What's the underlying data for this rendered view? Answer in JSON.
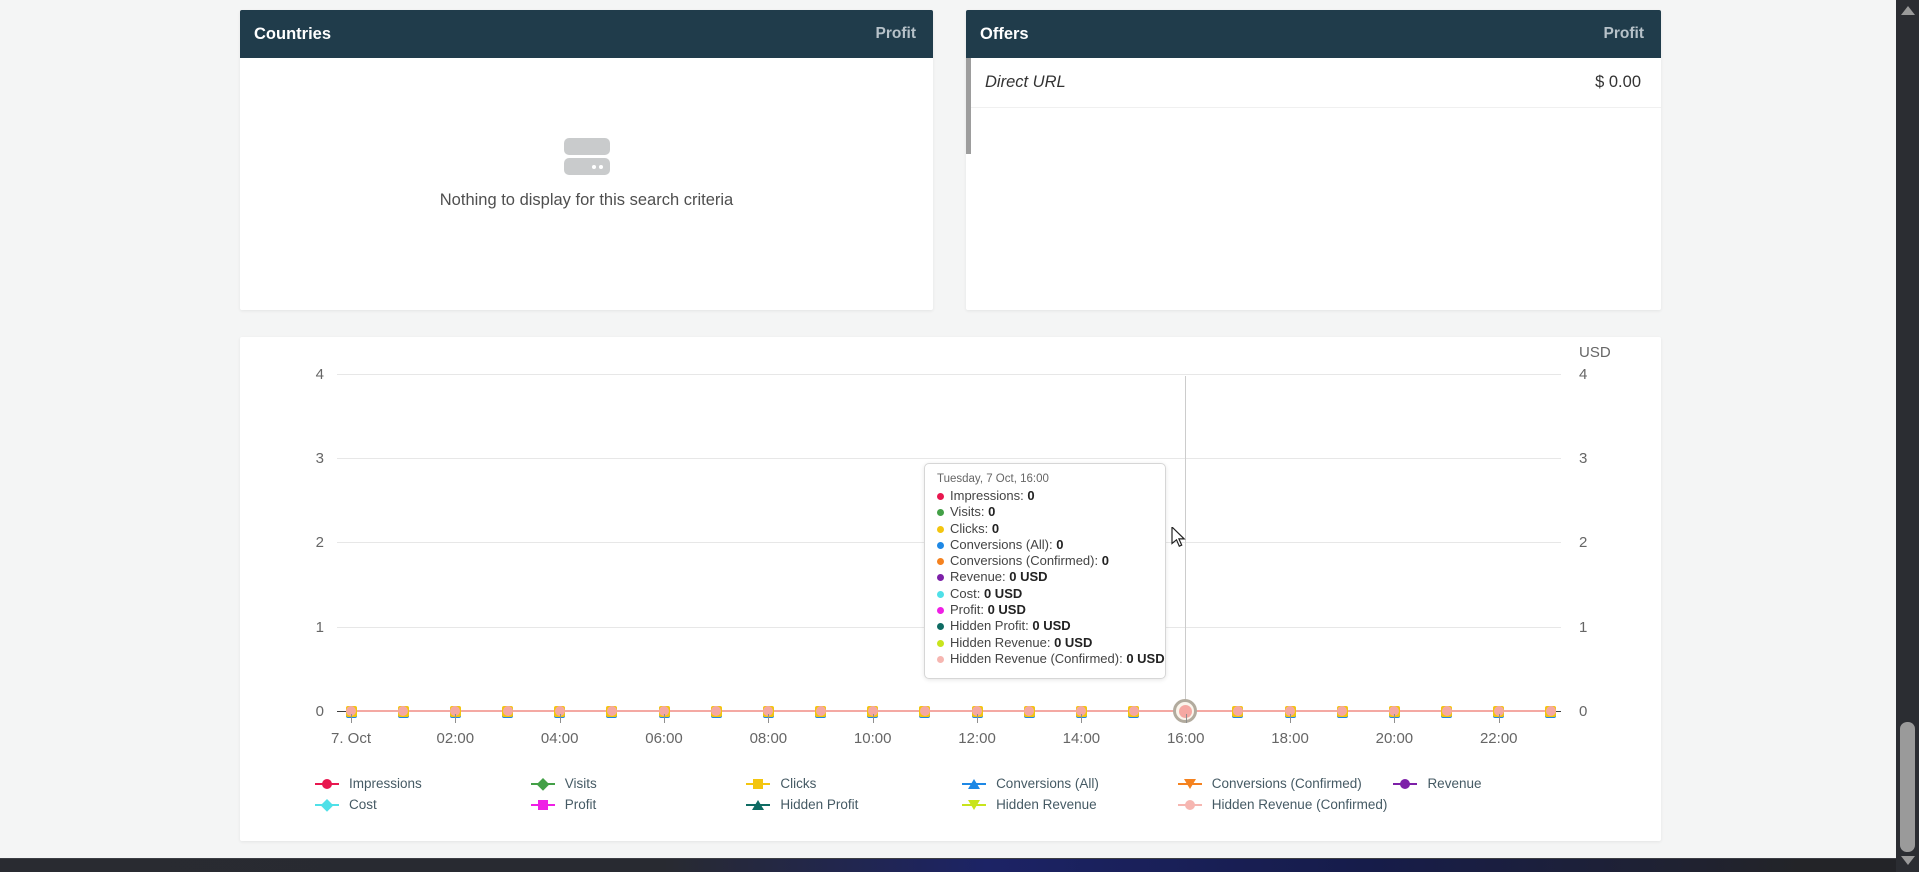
{
  "colors": {
    "page_bg": "#f4f5f5",
    "panel_header_bg": "#203c4b",
    "bottom_bar_navy": "#1c2365",
    "series_line": "#f4a9a3"
  },
  "panels": {
    "countries": {
      "title": "Countries",
      "column_header": "Profit",
      "empty_text": "Nothing to display for this search criteria"
    },
    "offers": {
      "title": "Offers",
      "column_header": "Profit",
      "rows": [
        {
          "name": "Direct URL",
          "profit": "$ 0.00"
        }
      ]
    }
  },
  "chart": {
    "currency_label": "USD",
    "y_ticks": [
      "4",
      "3",
      "2",
      "1",
      "0"
    ],
    "x_labels": [
      "7. Oct",
      "02:00",
      "04:00",
      "06:00",
      "08:00",
      "10:00",
      "12:00",
      "14:00",
      "16:00",
      "18:00",
      "20:00",
      "22:00"
    ],
    "num_points": 24,
    "hover_index": 16,
    "tooltip": {
      "title": "Tuesday, 7 Oct, 16:00",
      "rows": [
        {
          "label": "Impressions",
          "value": "0",
          "color": "#e8174f"
        },
        {
          "label": "Visits",
          "value": "0",
          "color": "#43a047"
        },
        {
          "label": "Clicks",
          "value": "0",
          "color": "#f3c50f"
        },
        {
          "label": "Conversions (All)",
          "value": "0",
          "color": "#1e88e5"
        },
        {
          "label": "Conversions (Confirmed)",
          "value": "0",
          "color": "#f5821f"
        },
        {
          "label": "Revenue",
          "value": "0 USD",
          "color": "#7d20a8"
        },
        {
          "label": "Cost",
          "value": "0 USD",
          "color": "#4fe0e8"
        },
        {
          "label": "Profit",
          "value": "0 USD",
          "color": "#ef1fe5"
        },
        {
          "label": "Hidden Profit",
          "value": "0 USD",
          "color": "#0e6b63"
        },
        {
          "label": "Hidden Revenue",
          "value": "0 USD",
          "color": "#c8e41c"
        },
        {
          "label": "Hidden Revenue (Confirmed)",
          "value": "0 USD",
          "color": "#f6b6b1"
        }
      ]
    },
    "legend": {
      "row1": [
        {
          "label": "Impressions",
          "color": "#e8174f",
          "shape": "circle"
        },
        {
          "label": "Visits",
          "color": "#43a047",
          "shape": "diamond"
        },
        {
          "label": "Clicks",
          "color": "#f3c50f",
          "shape": "square"
        },
        {
          "label": "Conversions (All)",
          "color": "#1e88e5",
          "shape": "triangle-up"
        },
        {
          "label": "Conversions (Confirmed)",
          "color": "#f5821f",
          "shape": "triangle-down"
        },
        {
          "label": "Revenue",
          "color": "#7d20a8",
          "shape": "circle"
        }
      ],
      "row2": [
        {
          "label": "Cost",
          "color": "#4fe0e8",
          "shape": "diamond"
        },
        {
          "label": "Profit",
          "color": "#ef1fe5",
          "shape": "square"
        },
        {
          "label": "Hidden Profit",
          "color": "#0e6b63",
          "shape": "triangle-up"
        },
        {
          "label": "Hidden Revenue",
          "color": "#c8e41c",
          "shape": "triangle-down"
        },
        {
          "label": "Hidden Revenue (Confirmed)",
          "color": "#f6b6b1",
          "shape": "circle"
        }
      ]
    }
  },
  "chart_data": {
    "type": "line",
    "title": "",
    "xlabel": "",
    "ylabel": "USD",
    "ylim": [
      0,
      4
    ],
    "x_date": "Tuesday, 7 Oct",
    "x": [
      "00:00",
      "01:00",
      "02:00",
      "03:00",
      "04:00",
      "05:00",
      "06:00",
      "07:00",
      "08:00",
      "09:00",
      "10:00",
      "11:00",
      "12:00",
      "13:00",
      "14:00",
      "15:00",
      "16:00",
      "17:00",
      "18:00",
      "19:00",
      "20:00",
      "21:00",
      "22:00",
      "23:00"
    ],
    "series": [
      {
        "name": "Impressions",
        "values": [
          0,
          0,
          0,
          0,
          0,
          0,
          0,
          0,
          0,
          0,
          0,
          0,
          0,
          0,
          0,
          0,
          0,
          0,
          0,
          0,
          0,
          0,
          0,
          0
        ]
      },
      {
        "name": "Visits",
        "values": [
          0,
          0,
          0,
          0,
          0,
          0,
          0,
          0,
          0,
          0,
          0,
          0,
          0,
          0,
          0,
          0,
          0,
          0,
          0,
          0,
          0,
          0,
          0,
          0
        ]
      },
      {
        "name": "Clicks",
        "values": [
          0,
          0,
          0,
          0,
          0,
          0,
          0,
          0,
          0,
          0,
          0,
          0,
          0,
          0,
          0,
          0,
          0,
          0,
          0,
          0,
          0,
          0,
          0,
          0
        ]
      },
      {
        "name": "Conversions (All)",
        "values": [
          0,
          0,
          0,
          0,
          0,
          0,
          0,
          0,
          0,
          0,
          0,
          0,
          0,
          0,
          0,
          0,
          0,
          0,
          0,
          0,
          0,
          0,
          0,
          0
        ]
      },
      {
        "name": "Conversions (Confirmed)",
        "values": [
          0,
          0,
          0,
          0,
          0,
          0,
          0,
          0,
          0,
          0,
          0,
          0,
          0,
          0,
          0,
          0,
          0,
          0,
          0,
          0,
          0,
          0,
          0,
          0
        ]
      },
      {
        "name": "Revenue",
        "values": [
          0,
          0,
          0,
          0,
          0,
          0,
          0,
          0,
          0,
          0,
          0,
          0,
          0,
          0,
          0,
          0,
          0,
          0,
          0,
          0,
          0,
          0,
          0,
          0
        ]
      },
      {
        "name": "Cost",
        "values": [
          0,
          0,
          0,
          0,
          0,
          0,
          0,
          0,
          0,
          0,
          0,
          0,
          0,
          0,
          0,
          0,
          0,
          0,
          0,
          0,
          0,
          0,
          0,
          0
        ]
      },
      {
        "name": "Profit",
        "values": [
          0,
          0,
          0,
          0,
          0,
          0,
          0,
          0,
          0,
          0,
          0,
          0,
          0,
          0,
          0,
          0,
          0,
          0,
          0,
          0,
          0,
          0,
          0,
          0
        ]
      },
      {
        "name": "Hidden Profit",
        "values": [
          0,
          0,
          0,
          0,
          0,
          0,
          0,
          0,
          0,
          0,
          0,
          0,
          0,
          0,
          0,
          0,
          0,
          0,
          0,
          0,
          0,
          0,
          0,
          0
        ]
      },
      {
        "name": "Hidden Revenue",
        "values": [
          0,
          0,
          0,
          0,
          0,
          0,
          0,
          0,
          0,
          0,
          0,
          0,
          0,
          0,
          0,
          0,
          0,
          0,
          0,
          0,
          0,
          0,
          0,
          0
        ]
      },
      {
        "name": "Hidden Revenue (Confirmed)",
        "values": [
          0,
          0,
          0,
          0,
          0,
          0,
          0,
          0,
          0,
          0,
          0,
          0,
          0,
          0,
          0,
          0,
          0,
          0,
          0,
          0,
          0,
          0,
          0,
          0
        ]
      }
    ],
    "legend_position": "bottom",
    "grid": true
  }
}
